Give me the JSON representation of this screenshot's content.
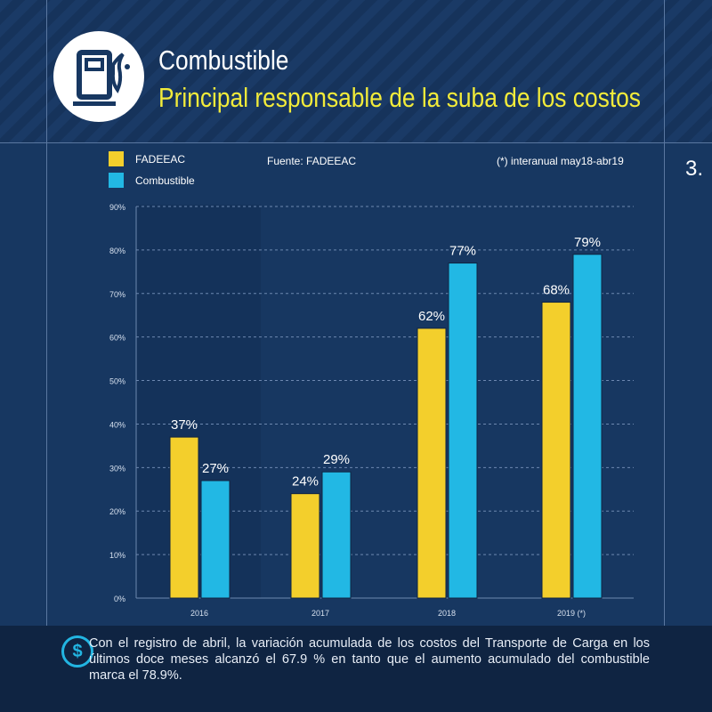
{
  "header": {
    "title": "Combustible",
    "subtitle": "Principal responsable de la suba de los costos",
    "icon": "fuel-pump-icon"
  },
  "source": "Fuente: FADEEAC",
  "footnote": "(*) interanual may18-abr19",
  "page_number": "3.",
  "colors": {
    "fadeeac": "#f3cf2c",
    "combustible": "#22b8e4",
    "background": "#173761",
    "subtitle": "#f2eb3a"
  },
  "chart_data": {
    "type": "bar",
    "categories": [
      "2016",
      "2017",
      "2018",
      "2019 (*)"
    ],
    "series": [
      {
        "name": "FADEEAC",
        "values": [
          37,
          24,
          62,
          68
        ],
        "labels": [
          "37%",
          "24%",
          "62%",
          "68%"
        ]
      },
      {
        "name": "Combustible",
        "values": [
          27,
          29,
          77,
          79
        ],
        "labels": [
          "27%",
          "29%",
          "77%",
          "79%"
        ]
      }
    ],
    "ylim": [
      0,
      90
    ],
    "yticks": [
      "0%",
      "10%",
      "20%",
      "30%",
      "40%",
      "50%",
      "60%",
      "70%",
      "80%",
      "90%"
    ],
    "grid": true,
    "legend": "top-left"
  },
  "footer": {
    "icon": "dollar-icon",
    "text": "Con el registro de abril, la variación acumulada de los costos del Transporte de Carga en los últimos doce meses alcanzó el 67.9 % en tanto que el aumento acumulado del combustible marca el 78.9%."
  }
}
